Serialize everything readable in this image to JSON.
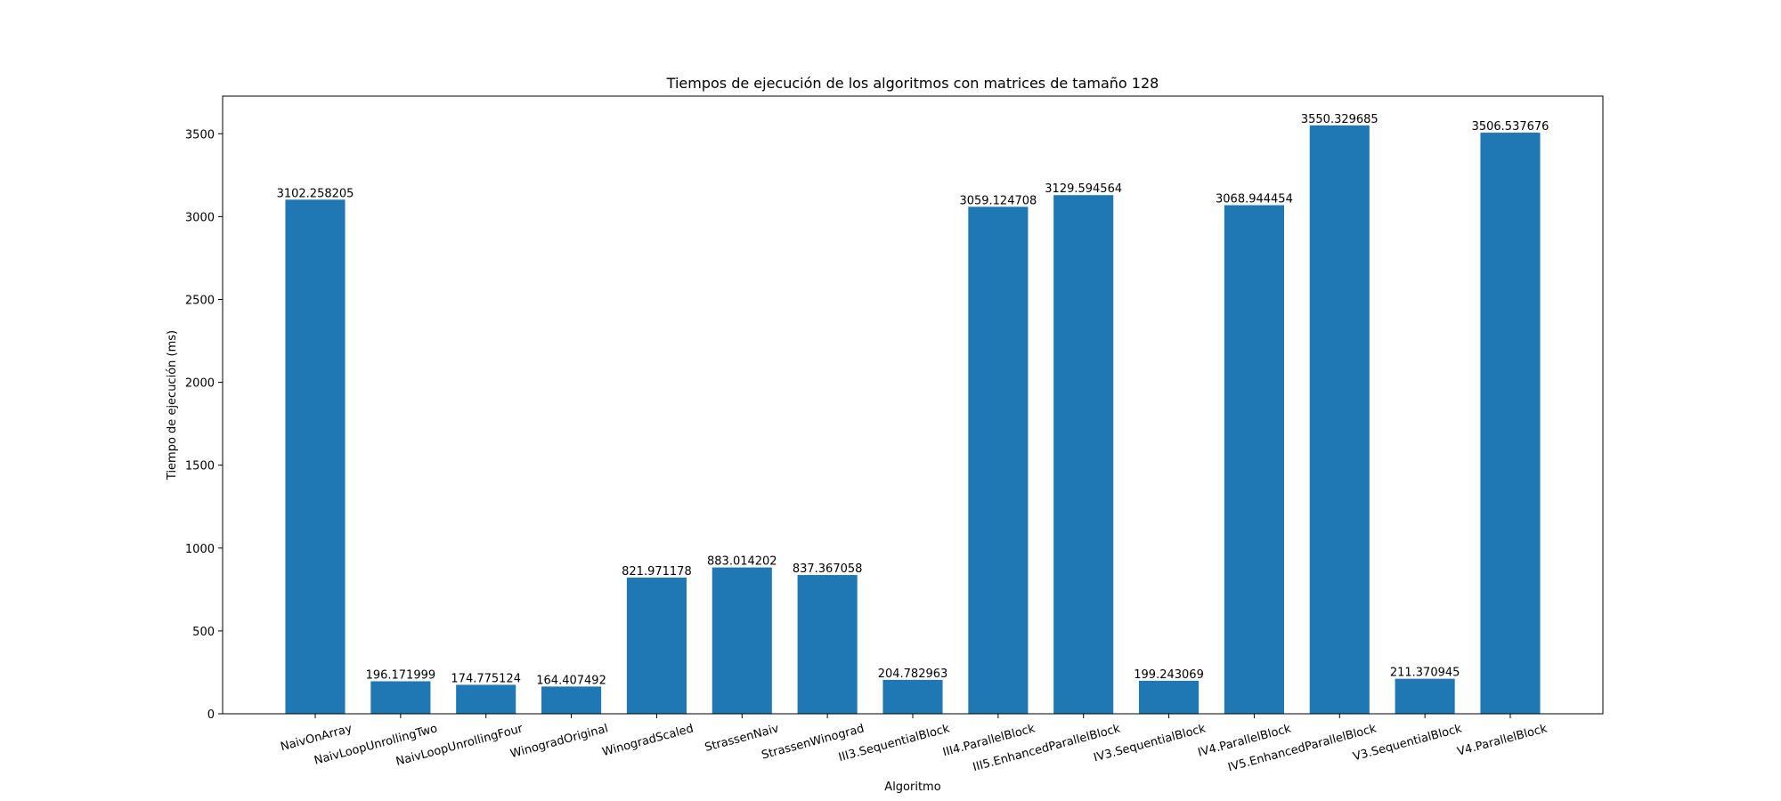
{
  "chart_data": {
    "type": "bar",
    "title": "Tiempos de ejecución de los algoritmos con matrices de tamaño 128",
    "xlabel": "Algoritmo",
    "ylabel": "Tiempo de ejecución (ms)",
    "ylim": [
      0,
      3727
    ],
    "yticks": [
      0,
      500,
      1000,
      1500,
      2000,
      2500,
      3000,
      3500
    ],
    "ytick_labels": [
      "0",
      "500",
      "1000",
      "1500",
      "2000",
      "2500",
      "3000",
      "3500"
    ],
    "grid": false,
    "bar_color": "#1f77b4",
    "categories": [
      "NaivOnArray",
      "NaivLoopUnrollingTwo",
      "NaivLoopUnrollingFour",
      "WinogradOriginal",
      "WinogradScaled",
      "StrassenNaiv",
      "StrassenWinograd",
      "III3.SequentialBlock",
      "III4.ParallelBlock",
      "III5.EnhancedParallelBlock",
      "IV3.SequentialBlock",
      "IV4.ParallelBlock",
      "IV5.EnhancedParallelBlock",
      "V3.SequentialBlock",
      "V4.ParallelBlock"
    ],
    "values": [
      3102.258205,
      196.171999,
      174.775124,
      164.407492,
      821.971178,
      883.014202,
      837.367058,
      204.782963,
      3059.124708,
      3129.594564,
      199.243069,
      3068.944454,
      3550.329685,
      211.370945,
      3506.537676
    ],
    "value_labels": [
      "3102.258205",
      "196.171999",
      "174.775124",
      "164.407492",
      "821.971178",
      "883.014202",
      "837.367058",
      "204.782963",
      "3059.124708",
      "3129.594564",
      "199.243069",
      "3068.944454",
      "3550.329685",
      "211.370945",
      "3506.537676"
    ]
  }
}
